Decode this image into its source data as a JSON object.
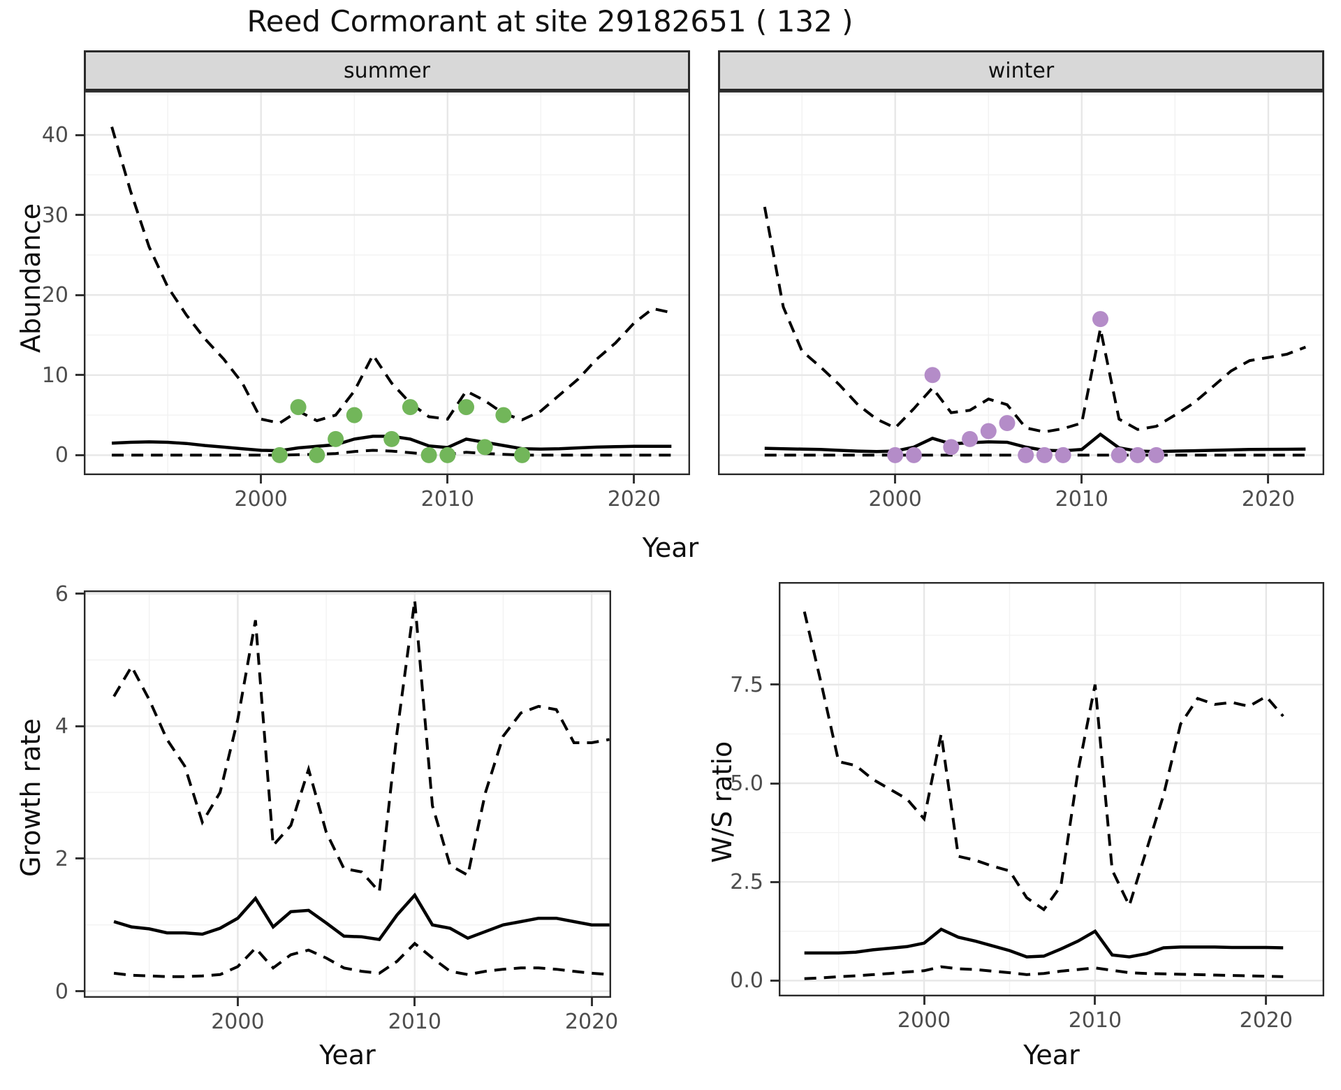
{
  "title": "Reed Cormorant at site 29182651 ( 132 )",
  "colors": {
    "summer_points": "#72b65a",
    "winter_points": "#b48cc8",
    "line": "#000000",
    "strip_background": "#d8d8d8",
    "major_grid": "#e7e7e7",
    "minor_grid": "#f2f2f2",
    "tick_text": "#4d4d4d"
  },
  "chart_data": [
    {
      "id": "abundance-summer",
      "type": "line",
      "facet_label": "summer",
      "ylabel": "Abundance",
      "xlabel": "Year",
      "xlim": [
        1990.5,
        2023
      ],
      "ylim": [
        -2.5,
        45.5
      ],
      "xticks": [
        2000,
        2010,
        2020
      ],
      "xtick_labels": [
        "2000",
        "2010",
        "2020"
      ],
      "yticks": [
        0,
        10,
        20,
        30,
        40
      ],
      "ytick_labels": [
        "0",
        "10",
        "20",
        "30",
        "40"
      ],
      "xminor": [
        1995,
        2005,
        2015
      ],
      "yminor": [
        5,
        15,
        25,
        35,
        45
      ],
      "grid": true,
      "legend": "none",
      "series": [
        {
          "name": "upper-ci",
          "linetype": "dashed",
          "width": 4,
          "x_start": 1992,
          "values": [
            41,
            33,
            26,
            21,
            17.5,
            14.5,
            12,
            9,
            4.5,
            4.0,
            5.5,
            4.3,
            5.0,
            8.0,
            12.5,
            9.0,
            6.5,
            4.8,
            4.5,
            8.0,
            6.8,
            5.2,
            4.4,
            5.5,
            7.5,
            9.5,
            12.0,
            14.0,
            16.5,
            18.3,
            17.8
          ]
        },
        {
          "name": "mean",
          "linetype": "solid",
          "width": 4.5,
          "x_start": 1992,
          "values": [
            1.5,
            1.6,
            1.65,
            1.6,
            1.45,
            1.2,
            1.0,
            0.8,
            0.6,
            0.55,
            0.9,
            1.1,
            1.3,
            2.0,
            2.35,
            2.35,
            2.0,
            1.15,
            0.95,
            2.0,
            1.6,
            1.2,
            0.8,
            0.75,
            0.8,
            0.9,
            1.0,
            1.05,
            1.1,
            1.1,
            1.1
          ]
        },
        {
          "name": "lower-ci",
          "linetype": "dashed",
          "width": 4,
          "x_start": 1992,
          "values": [
            0,
            0,
            0,
            0,
            0,
            0,
            0,
            0,
            0,
            0,
            0.05,
            0.1,
            0.2,
            0.45,
            0.6,
            0.5,
            0.3,
            0.1,
            0.1,
            0.35,
            0.2,
            0.1,
            0,
            0,
            0,
            0,
            0,
            0,
            0,
            0,
            0
          ]
        }
      ],
      "points": [
        [
          2001,
          0
        ],
        [
          2002,
          6
        ],
        [
          2003,
          0
        ],
        [
          2004,
          2
        ],
        [
          2005,
          5
        ],
        [
          2007,
          2
        ],
        [
          2008,
          6
        ],
        [
          2009,
          0
        ],
        [
          2010,
          0
        ],
        [
          2011,
          6
        ],
        [
          2012,
          1
        ],
        [
          2013,
          5
        ],
        [
          2014,
          0
        ]
      ],
      "point_color": "#72b65a"
    },
    {
      "id": "abundance-winter",
      "type": "line",
      "facet_label": "winter",
      "ylabel": "Abundance",
      "xlabel": "Year",
      "xlim": [
        1990.5,
        2023
      ],
      "ylim": [
        -2.5,
        45.5
      ],
      "xticks": [
        2000,
        2010,
        2020
      ],
      "xtick_labels": [
        "2000",
        "2010",
        "2020"
      ],
      "yticks": [
        0,
        10,
        20,
        30,
        40
      ],
      "ytick_labels": [
        "0",
        "10",
        "20",
        "30",
        "40"
      ],
      "xminor": [
        1995,
        2005,
        2015
      ],
      "yminor": [
        5,
        15,
        25,
        35,
        45
      ],
      "grid": true,
      "legend": "none",
      "series": [
        {
          "name": "upper-ci",
          "linetype": "dashed",
          "width": 4,
          "x_start": 1993,
          "values": [
            31,
            18.5,
            13,
            11,
            8.8,
            6.3,
            4.5,
            3.4,
            5.8,
            8.4,
            5.3,
            5.6,
            7.0,
            6.3,
            3.4,
            2.9,
            3.3,
            4.0,
            15.8,
            4.5,
            3.2,
            3.6,
            5.0,
            6.5,
            8.5,
            10.5,
            11.8,
            12.2,
            12.6,
            13.5
          ]
        },
        {
          "name": "mean",
          "linetype": "solid",
          "width": 4.5,
          "x_start": 1993,
          "values": [
            0.85,
            0.8,
            0.75,
            0.7,
            0.6,
            0.5,
            0.45,
            0.5,
            1.0,
            2.1,
            1.4,
            1.55,
            1.65,
            1.6,
            1.0,
            0.6,
            0.55,
            0.7,
            2.6,
            0.9,
            0.5,
            0.45,
            0.5,
            0.55,
            0.6,
            0.65,
            0.7,
            0.72,
            0.73,
            0.75
          ]
        },
        {
          "name": "lower-ci",
          "linetype": "dashed",
          "width": 4,
          "x_start": 1993,
          "values": [
            0,
            0,
            0,
            0,
            0,
            0,
            0,
            0,
            0,
            0,
            0,
            0,
            0,
            0,
            0,
            0,
            0,
            0,
            0,
            0,
            0,
            0,
            0,
            0,
            0,
            0,
            0,
            0,
            0,
            0
          ]
        }
      ],
      "points": [
        [
          2000,
          0
        ],
        [
          2001,
          0
        ],
        [
          2002,
          10
        ],
        [
          2003,
          1
        ],
        [
          2004,
          2
        ],
        [
          2005,
          3
        ],
        [
          2006,
          4
        ],
        [
          2007,
          0
        ],
        [
          2008,
          0
        ],
        [
          2009,
          0
        ],
        [
          2011,
          17
        ],
        [
          2012,
          0
        ],
        [
          2013,
          0
        ],
        [
          2014,
          0
        ]
      ],
      "point_color": "#b48cc8"
    },
    {
      "id": "growth-rate",
      "type": "line",
      "facet_label": "",
      "ylabel": "Growth rate",
      "xlabel": "Year",
      "xlim": [
        1991.3,
        2021.1
      ],
      "ylim": [
        -0.1,
        6.05
      ],
      "xticks": [
        2000,
        2010,
        2020
      ],
      "xtick_labels": [
        "2000",
        "2010",
        "2020"
      ],
      "yticks": [
        0,
        2,
        4,
        6
      ],
      "ytick_labels": [
        "0",
        "2",
        "4",
        "6"
      ],
      "xminor": [
        1995,
        2005,
        2015
      ],
      "yminor": [
        1,
        3,
        5
      ],
      "grid": true,
      "legend": "none",
      "series": [
        {
          "name": "upper-ci",
          "linetype": "dashed",
          "width": 4,
          "x_start": 1993,
          "values": [
            4.45,
            4.9,
            4.4,
            3.8,
            3.4,
            2.55,
            3.0,
            4.1,
            5.6,
            2.2,
            2.5,
            3.35,
            2.4,
            1.85,
            1.8,
            1.5,
            3.9,
            5.9,
            2.8,
            1.9,
            1.75,
            3.0,
            3.85,
            4.2,
            4.3,
            4.25,
            3.75,
            3.75,
            3.8
          ]
        },
        {
          "name": "mean",
          "linetype": "solid",
          "width": 4.5,
          "x_start": 1993,
          "values": [
            1.05,
            0.97,
            0.94,
            0.88,
            0.88,
            0.86,
            0.95,
            1.1,
            1.4,
            0.97,
            1.2,
            1.22,
            1.03,
            0.83,
            0.82,
            0.78,
            1.15,
            1.45,
            1.0,
            0.95,
            0.8,
            0.9,
            1.0,
            1.05,
            1.1,
            1.1,
            1.05,
            1.0,
            1.0
          ]
        },
        {
          "name": "lower-ci",
          "linetype": "dashed",
          "width": 4,
          "x_start": 1993,
          "values": [
            0.27,
            0.24,
            0.23,
            0.22,
            0.22,
            0.23,
            0.25,
            0.37,
            0.65,
            0.35,
            0.55,
            0.62,
            0.5,
            0.35,
            0.3,
            0.27,
            0.45,
            0.72,
            0.5,
            0.3,
            0.25,
            0.3,
            0.33,
            0.35,
            0.35,
            0.33,
            0.3,
            0.27,
            0.25
          ]
        }
      ],
      "points": [],
      "point_color": "#000000"
    },
    {
      "id": "ws-ratio",
      "type": "line",
      "facet_label": "",
      "ylabel": "W/S ratio",
      "xlabel": "Year",
      "xlim": [
        1991.5,
        2023.4
      ],
      "ylim": [
        -0.4,
        10.1
      ],
      "xticks": [
        2000,
        2010,
        2020
      ],
      "xtick_labels": [
        "2000",
        "2010",
        "2020"
      ],
      "yticks": [
        0,
        2.5,
        5,
        7.5
      ],
      "ytick_labels": [
        "0.0",
        "2.5",
        "5.0",
        "7.5"
      ],
      "xminor": [
        1995,
        2005,
        2015
      ],
      "yminor": [
        1.25,
        3.75,
        6.25,
        8.75
      ],
      "grid": true,
      "legend": "none",
      "series": [
        {
          "name": "upper-ci",
          "linetype": "dashed",
          "width": 4,
          "x_start": 1993,
          "values": [
            9.35,
            7.5,
            5.55,
            5.45,
            5.1,
            4.85,
            4.6,
            4.1,
            6.25,
            3.15,
            3.05,
            2.9,
            2.78,
            2.1,
            1.8,
            2.4,
            5.3,
            7.5,
            2.8,
            1.9,
            3.3,
            4.7,
            6.5,
            7.15,
            7.0,
            7.05,
            6.95,
            7.2,
            6.7
          ]
        },
        {
          "name": "mean",
          "linetype": "solid",
          "width": 4.5,
          "x_start": 1993,
          "values": [
            0.7,
            0.7,
            0.7,
            0.72,
            0.78,
            0.82,
            0.86,
            0.95,
            1.3,
            1.1,
            1.0,
            0.88,
            0.76,
            0.6,
            0.62,
            0.8,
            1.0,
            1.25,
            0.65,
            0.6,
            0.68,
            0.83,
            0.85,
            0.85,
            0.85,
            0.84,
            0.84,
            0.84,
            0.83
          ]
        },
        {
          "name": "lower-ci",
          "linetype": "dashed",
          "width": 4,
          "x_start": 1993,
          "values": [
            0.05,
            0.07,
            0.1,
            0.12,
            0.15,
            0.18,
            0.22,
            0.25,
            0.35,
            0.3,
            0.28,
            0.24,
            0.2,
            0.15,
            0.18,
            0.24,
            0.28,
            0.32,
            0.26,
            0.2,
            0.18,
            0.17,
            0.16,
            0.15,
            0.14,
            0.13,
            0.12,
            0.11,
            0.1
          ]
        }
      ],
      "points": [],
      "point_color": "#000000"
    }
  ]
}
